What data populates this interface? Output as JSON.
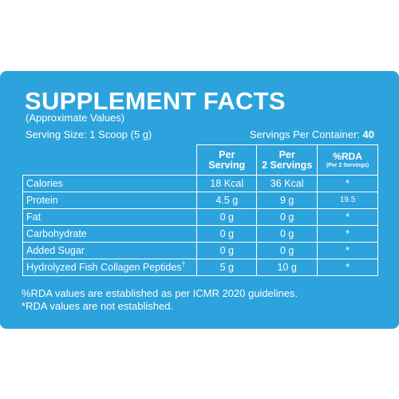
{
  "label": {
    "title": "SUPPLEMENT FACTS",
    "subtitle": "(Approximate Values)",
    "serving_size": "Serving Size: 1 Scoop (5 g)",
    "servings_per_container_label": "Servings Per Container:",
    "servings_per_container_value": "40",
    "colors": {
      "panel": "#2ca3dc",
      "text": "#ffffff"
    }
  },
  "table": {
    "headers": {
      "per_serving_1": "Per",
      "per_serving_2": "Serving",
      "per_2_servings_1": "Per",
      "per_2_servings_2": "2 Servings",
      "rda_1": "%RDA",
      "rda_2": "(Per 2 Servings)"
    },
    "rows": [
      {
        "name": "Calories",
        "per_serving": "18 Kcal",
        "per_2_servings": "36 Kcal",
        "rda": "*"
      },
      {
        "name": "Protein",
        "per_serving": "4.5 g",
        "per_2_servings": "9 g",
        "rda": "19.5"
      },
      {
        "name": "Fat",
        "per_serving": "0 g",
        "per_2_servings": "0 g",
        "rda": "*"
      },
      {
        "name": "Carbohydrate",
        "per_serving": "0 g",
        "per_2_servings": "0 g",
        "rda": "*"
      },
      {
        "name": "Added Sugar",
        "per_serving": "0 g",
        "per_2_servings": "0 g",
        "rda": "*"
      },
      {
        "name": "Hydrolyzed Fish Collagen Peptides",
        "name_mark": "†",
        "per_serving": "5 g",
        "per_2_servings": "10 g",
        "rda": "*"
      }
    ]
  },
  "footnotes": {
    "rda_basis": "%RDA values are established as per ICMR 2020 guidelines.",
    "rda_not_established": "*RDA values are not established."
  }
}
